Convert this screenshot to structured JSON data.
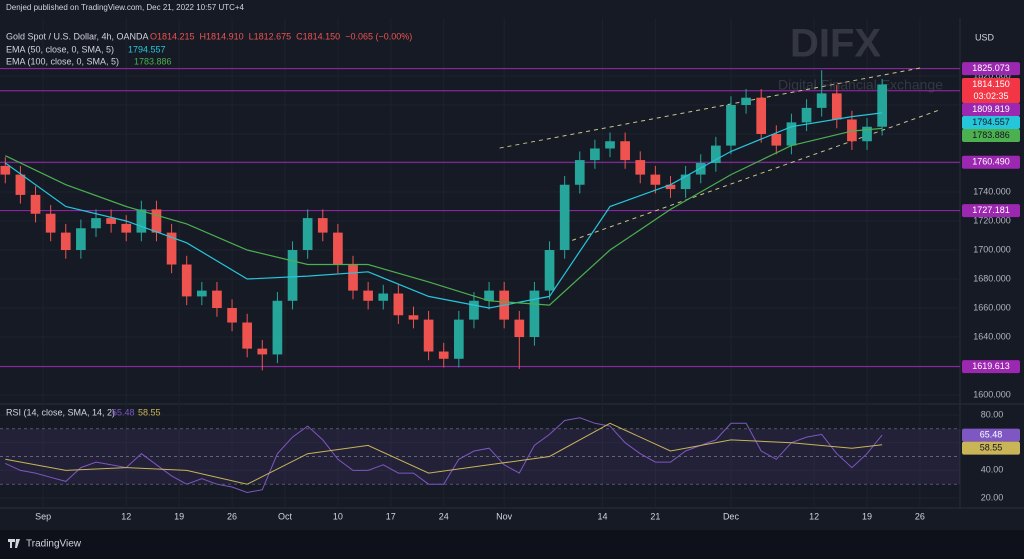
{
  "header": "Denjed published on TradingView.com, Dec 21, 2022 10:57 UTC+4",
  "footer_brand": "TradingView",
  "watermark": {
    "title": "DIFX",
    "subtitle": "Digital Financial Exchange"
  },
  "chart_data": {
    "type": "candlestick",
    "title": "Gold Spot / U.S. Dollar, 4h, OANDA",
    "ohlc_labels": [
      "O1814.215",
      "H1814.910",
      "L1812.675",
      "C1814.150",
      "−0.065 (−0.00%)"
    ],
    "currency": "USD",
    "up_color": "#26a69a",
    "down_color": "#ef5350",
    "x": [
      -5,
      -3,
      -1,
      1,
      3,
      5,
      7,
      9,
      11,
      13,
      15,
      17,
      19,
      21,
      23,
      25,
      27,
      29,
      31,
      33,
      35,
      37,
      39,
      41,
      43,
      45,
      47,
      49,
      51,
      53,
      55,
      57,
      59,
      61,
      63,
      65,
      67,
      69,
      71,
      73,
      75,
      77,
      79,
      81,
      83,
      85,
      87,
      89,
      91,
      93,
      95,
      97,
      99,
      101,
      103,
      105,
      107,
      109,
      111
    ],
    "open": [
      1758,
      1752,
      1738,
      1725,
      1712,
      1700,
      1715,
      1722,
      1718,
      1712,
      1728,
      1712,
      1690,
      1668,
      1672,
      1660,
      1650,
      1632,
      1628,
      1665,
      1700,
      1722,
      1712,
      1690,
      1672,
      1665,
      1670,
      1655,
      1652,
      1630,
      1625,
      1652,
      1665,
      1672,
      1652,
      1640,
      1672,
      1700,
      1745,
      1762,
      1770,
      1775,
      1762,
      1752,
      1745,
      1742,
      1752,
      1760,
      1772,
      1800,
      1805,
      1780,
      1772,
      1788,
      1798,
      1808,
      1790,
      1775,
      1785
    ],
    "high": [
      1764,
      1758,
      1744,
      1731,
      1718,
      1721,
      1728,
      1728,
      1724,
      1734,
      1734,
      1718,
      1696,
      1678,
      1678,
      1666,
      1656,
      1638,
      1671,
      1706,
      1728,
      1728,
      1718,
      1696,
      1678,
      1676,
      1676,
      1661,
      1658,
      1636,
      1658,
      1671,
      1678,
      1678,
      1658,
      1678,
      1706,
      1751,
      1768,
      1776,
      1781,
      1781,
      1768,
      1758,
      1751,
      1758,
      1766,
      1778,
      1806,
      1811,
      1811,
      1786,
      1794,
      1804,
      1824,
      1814,
      1796,
      1791,
      1818
    ],
    "low": [
      1746,
      1732,
      1719,
      1706,
      1694,
      1694,
      1709,
      1712,
      1706,
      1706,
      1706,
      1684,
      1662,
      1662,
      1654,
      1644,
      1626,
      1617,
      1622,
      1659,
      1694,
      1706,
      1684,
      1666,
      1659,
      1659,
      1649,
      1646,
      1624,
      1619,
      1619,
      1646,
      1659,
      1646,
      1618,
      1634,
      1666,
      1694,
      1739,
      1756,
      1764,
      1756,
      1746,
      1739,
      1736,
      1736,
      1746,
      1754,
      1766,
      1794,
      1774,
      1766,
      1766,
      1782,
      1792,
      1784,
      1769,
      1769,
      1779
    ],
    "close": [
      1752,
      1738,
      1725,
      1712,
      1700,
      1715,
      1722,
      1718,
      1712,
      1728,
      1712,
      1690,
      1668,
      1672,
      1660,
      1650,
      1632,
      1628,
      1665,
      1700,
      1722,
      1712,
      1690,
      1672,
      1665,
      1670,
      1655,
      1652,
      1630,
      1625,
      1652,
      1665,
      1672,
      1652,
      1640,
      1672,
      1700,
      1745,
      1762,
      1770,
      1775,
      1762,
      1752,
      1745,
      1742,
      1752,
      1760,
      1772,
      1800,
      1805,
      1780,
      1772,
      1788,
      1798,
      1808,
      1790,
      1775,
      1785,
      1814.15
    ],
    "xlim": [
      -5.7,
      121.3
    ],
    "xticks": [
      {
        "value": 0,
        "label": "Sep"
      },
      {
        "value": 11,
        "label": "12"
      },
      {
        "value": 18,
        "label": "19"
      },
      {
        "value": 25,
        "label": "26"
      },
      {
        "value": 32,
        "label": "Oct"
      },
      {
        "value": 39,
        "label": "10"
      },
      {
        "value": 46,
        "label": "17"
      },
      {
        "value": 53,
        "label": "24"
      },
      {
        "value": 61,
        "label": "Nov"
      },
      {
        "value": 74,
        "label": "14"
      },
      {
        "value": 81,
        "label": "21"
      },
      {
        "value": 91,
        "label": "Dec"
      },
      {
        "value": 102,
        "label": "12"
      },
      {
        "value": 109,
        "label": "19"
      },
      {
        "value": 116,
        "label": "26"
      }
    ],
    "ylim": [
      1595.2,
      1851.7
    ],
    "yticks": [
      {
        "value": 1600,
        "label": "1600.000"
      },
      {
        "value": 1620,
        "label": "1620.000"
      },
      {
        "value": 1640,
        "label": "1640.000"
      },
      {
        "value": 1660,
        "label": "1660.000"
      },
      {
        "value": 1680,
        "label": "1680.000"
      },
      {
        "value": 1700,
        "label": "1700.000"
      },
      {
        "value": 1720,
        "label": "1720.000"
      },
      {
        "value": 1740,
        "label": "1740.000"
      },
      {
        "value": 1760,
        "label": "1760.000"
      },
      {
        "value": 1780,
        "label": "1780.000"
      },
      {
        "value": 1800,
        "label": "1800.000"
      },
      {
        "value": 1820,
        "label": "1820.000"
      }
    ],
    "grid": true,
    "series": [
      {
        "name": "EMA (50, close, 0, SMA, 5)",
        "color": "#26c6da",
        "last": 1794.557,
        "x": [
          -5,
          3,
          11,
          19,
          27,
          35,
          43,
          51,
          59,
          67,
          75,
          83,
          91,
          99,
          107,
          111
        ],
        "values": [
          1760,
          1730,
          1720,
          1705,
          1680,
          1682,
          1685,
          1668,
          1660,
          1668,
          1730,
          1745,
          1768,
          1785,
          1792,
          1794.557
        ]
      },
      {
        "name": "EMA (100, close, 0, SMA, 5)",
        "color": "#4caf50",
        "last": 1783.886,
        "x": [
          -5,
          3,
          11,
          19,
          27,
          35,
          43,
          51,
          59,
          67,
          75,
          83,
          91,
          99,
          107,
          111
        ],
        "values": [
          1765,
          1745,
          1730,
          1718,
          1700,
          1690,
          1690,
          1678,
          1665,
          1662,
          1700,
          1728,
          1752,
          1772,
          1782,
          1783.886
        ]
      }
    ],
    "levels_color": "#9c27b0",
    "levels": [
      1825.073,
      1809.819,
      {
        "value": 1760.49,
        "label": "1760.490"
      },
      1727.181,
      1619.613
    ],
    "price_label": {
      "value": 1814.15,
      "label": "1814.150",
      "countdown": "03:02:35",
      "color": "#f23645"
    },
    "trendline_color": "#c8c48a",
    "trendlines": [
      {
        "x": [
          60.4,
          116
        ],
        "y": [
          1770.3,
          1825.5
        ]
      },
      {
        "x": [
          69,
          118.6
        ],
        "y": [
          1704.8,
          1796.6
        ]
      }
    ],
    "rsi": {
      "title": "RSI (14, close, SMA, 14, 2)",
      "color": "#7e57c2",
      "ma_color": "#c9b458",
      "values": [
        45,
        40,
        38,
        35,
        32,
        42,
        46,
        44,
        42,
        52,
        44,
        36,
        30,
        34,
        30,
        28,
        24,
        26,
        52,
        64,
        72,
        62,
        48,
        40,
        40,
        44,
        38,
        38,
        30,
        30,
        48,
        54,
        56,
        44,
        38,
        58,
        66,
        76,
        78,
        74,
        72,
        60,
        52,
        46,
        46,
        54,
        58,
        62,
        74,
        74,
        54,
        48,
        60,
        64,
        66,
        52,
        42,
        52,
        65.48
      ],
      "ma_x": [
        -5,
        3,
        11,
        19,
        27,
        35,
        43,
        51,
        59,
        67,
        75,
        83,
        91,
        99,
        107,
        111
      ],
      "ma_values": [
        48,
        40,
        42,
        40,
        30,
        52,
        58,
        38,
        44,
        50,
        74,
        54,
        62,
        60,
        56,
        58.55
      ],
      "last": 65.48,
      "ma_last": 58.55,
      "ylim": [
        12.8,
        86.5
      ],
      "yticks": [
        {
          "value": 20,
          "label": "20.00"
        },
        {
          "value": 40,
          "label": "40.00"
        },
        {
          "value": 60,
          "label": "60.00"
        },
        {
          "value": 80,
          "label": "80.00"
        }
      ],
      "bands": [
        30,
        50,
        70
      ]
    }
  }
}
